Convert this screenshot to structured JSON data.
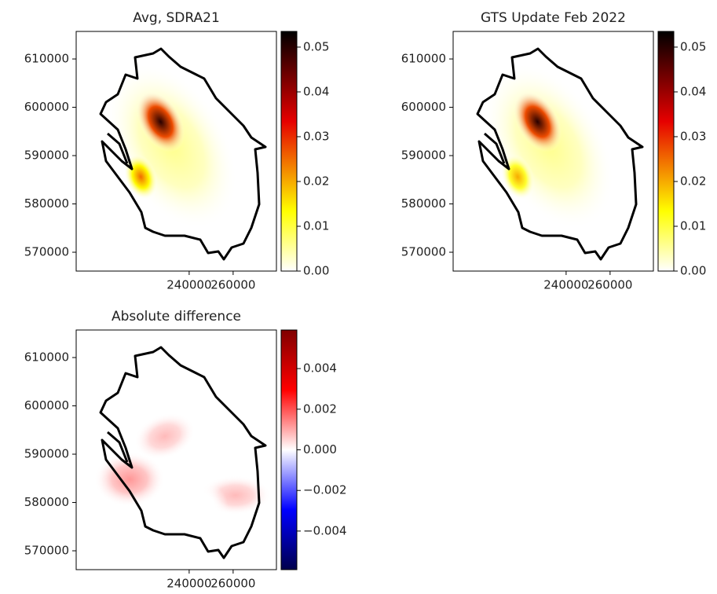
{
  "chart_data": [
    {
      "type": "heatmap",
      "title": "Avg, SDRA21",
      "colormap": "hot_r",
      "xlim": [
        188600,
        279700
      ],
      "ylim": [
        566100,
        615700
      ],
      "xticks": [
        240000,
        260000
      ],
      "yticks": [
        570000,
        580000,
        590000,
        600000,
        610000
      ],
      "x": [
        232000,
        227000,
        218000
      ],
      "y": [
        592000,
        597000,
        585600
      ],
      "values": [
        0.006,
        0.05,
        0.025
      ],
      "clim": [
        0,
        0.0535
      ],
      "cticks": [
        {
          "value": 0,
          "label": "0.00"
        },
        {
          "value": 0.01,
          "label": "0.01"
        },
        {
          "value": 0.02,
          "label": "0.02"
        },
        {
          "value": 0.03,
          "label": "0.03"
        },
        {
          "value": 0.04,
          "label": "0.04"
        },
        {
          "value": 0.05,
          "label": "0.05"
        }
      ]
    },
    {
      "type": "heatmap",
      "title": "GTS Update Feb 2022",
      "colormap": "hot_r",
      "xlim": [
        188600,
        279700
      ],
      "ylim": [
        566100,
        615700
      ],
      "xticks": [
        240000,
        260000
      ],
      "yticks": [
        570000,
        580000,
        590000,
        600000,
        610000
      ],
      "x": [
        232000,
        227000,
        218000
      ],
      "y": [
        592000,
        597000,
        585600
      ],
      "values": [
        0.006,
        0.05,
        0.02
      ],
      "clim": [
        0,
        0.0535
      ],
      "cticks": [
        {
          "value": 0,
          "label": "0.00"
        },
        {
          "value": 0.01,
          "label": "0.01"
        },
        {
          "value": 0.02,
          "label": "0.02"
        },
        {
          "value": 0.03,
          "label": "0.03"
        },
        {
          "value": 0.04,
          "label": "0.04"
        },
        {
          "value": 0.05,
          "label": "0.05"
        }
      ]
    },
    {
      "type": "heatmap",
      "title": "Absolute difference",
      "colormap": "seismic",
      "xlim": [
        188600,
        279700
      ],
      "ylim": [
        566100,
        615700
      ],
      "xticks": [
        240000,
        260000
      ],
      "yticks": [
        570000,
        580000,
        590000,
        600000,
        610000
      ],
      "x": [
        228900,
        212900,
        261100,
        245000
      ],
      "y": [
        593700,
        584800,
        581500,
        579100
      ],
      "values": [
        0.0008,
        0.0012,
        0.0008,
        0
      ],
      "clim": [
        -0.0059,
        0.0059
      ],
      "cticks": [
        {
          "value": -0.004,
          "label": "−0.004"
        },
        {
          "value": -0.002,
          "label": "−0.002"
        },
        {
          "value": 0,
          "label": "0.000"
        },
        {
          "value": 0.002,
          "label": "0.002"
        },
        {
          "value": 0.004,
          "label": "0.004"
        }
      ]
    }
  ]
}
